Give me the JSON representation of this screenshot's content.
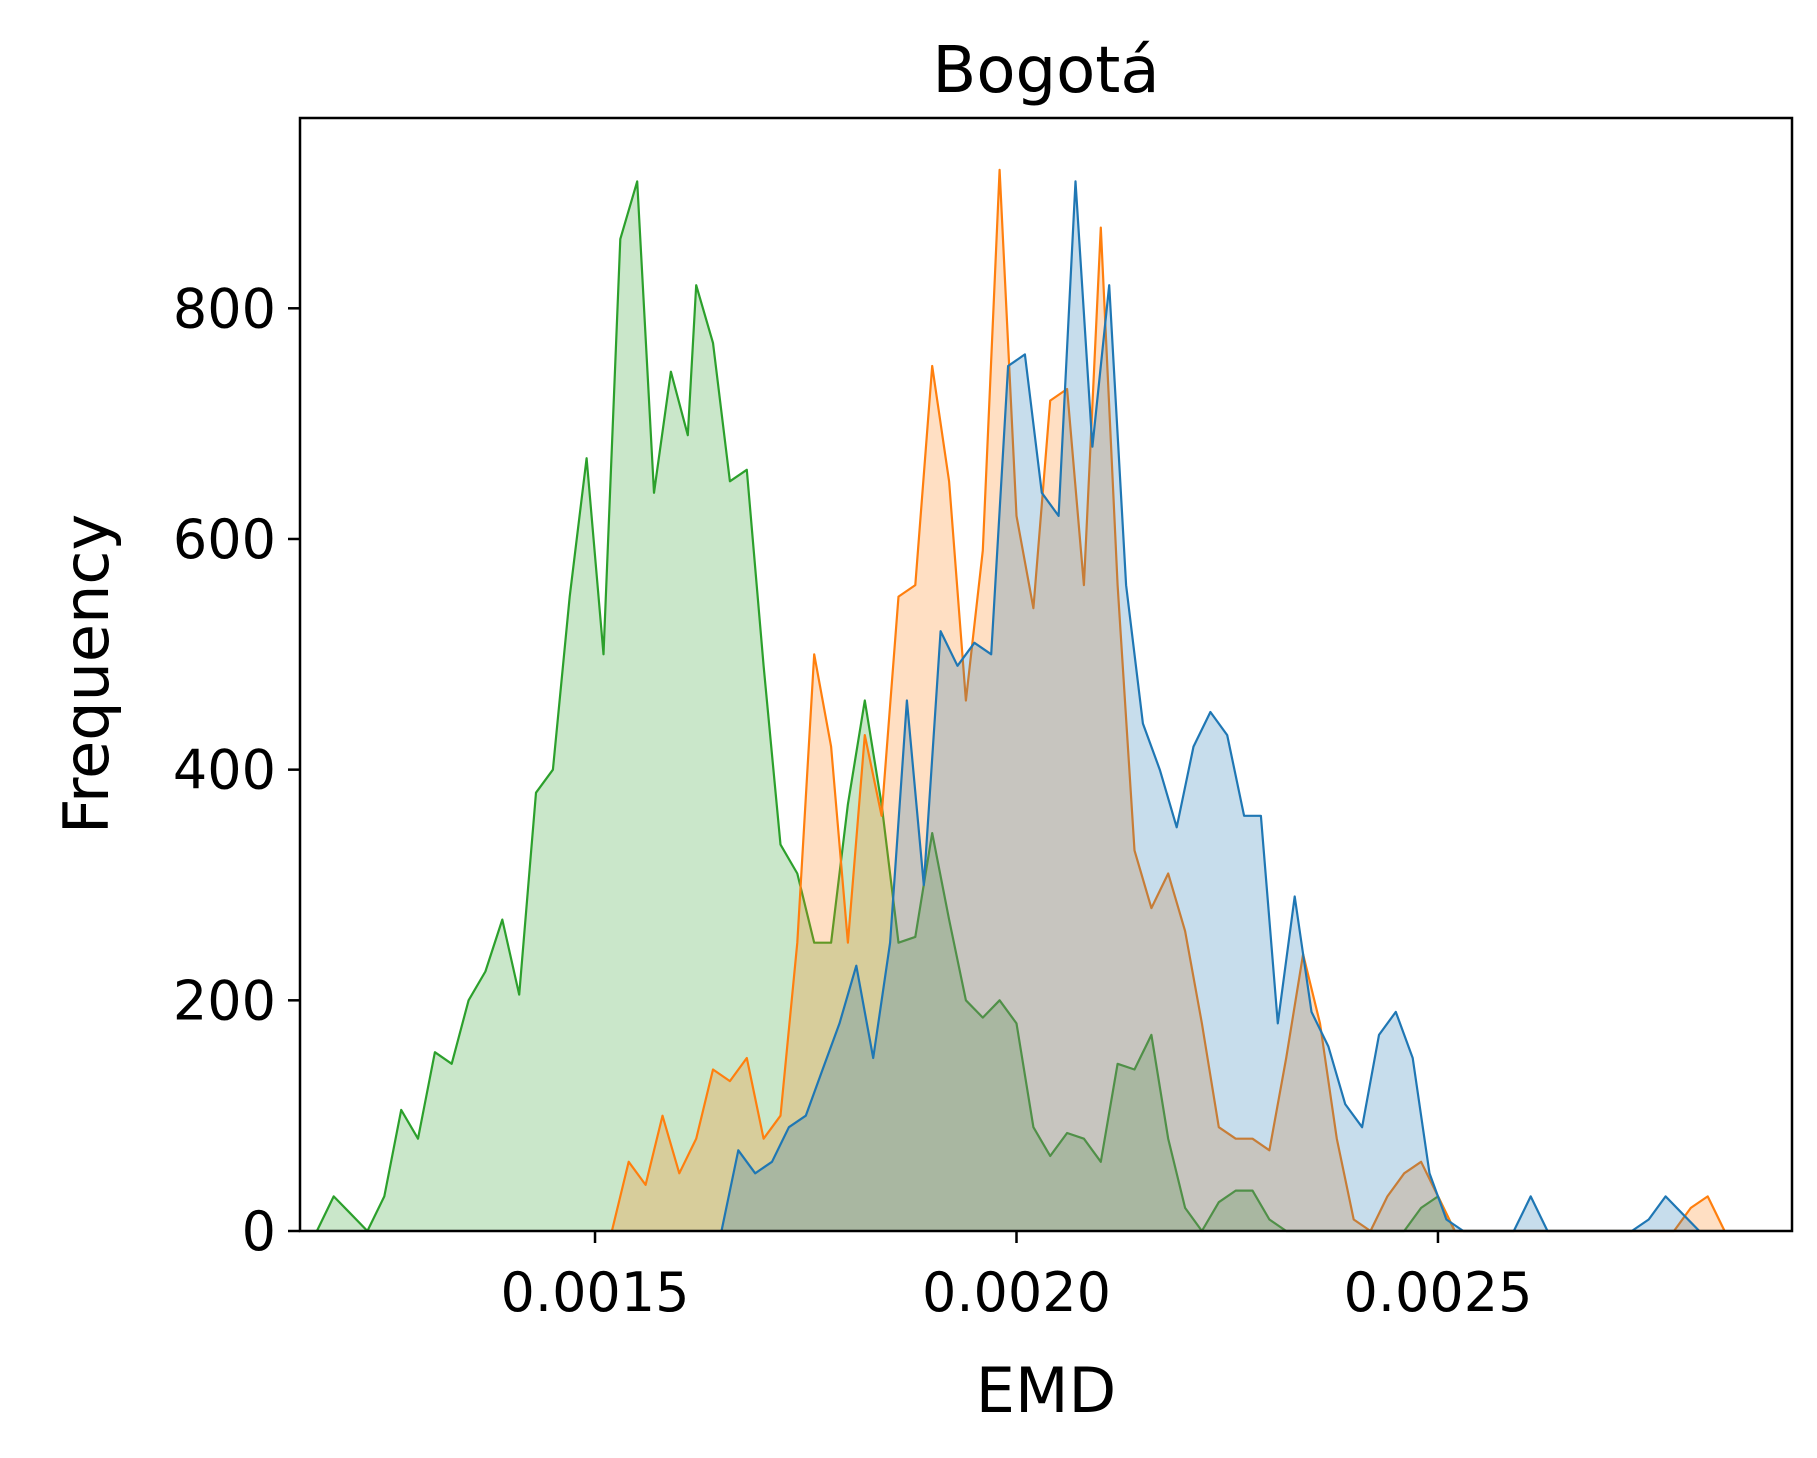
{
  "chart_data": {
    "type": "area",
    "title": "Bogotá",
    "xlabel": "EMD",
    "ylabel": "Frequency",
    "xlim": [
      0.00115,
      0.00292
    ],
    "ylim": [
      0,
      965
    ],
    "xticks": [
      0.0015,
      0.002,
      0.0025
    ],
    "xtick_labels": [
      "0.0015",
      "0.0020",
      "0.0025"
    ],
    "yticks": [
      0,
      200,
      400,
      600,
      800
    ],
    "ytick_labels": [
      "0",
      "200",
      "400",
      "600",
      "800"
    ],
    "grid": false,
    "legend": "none",
    "series": [
      {
        "color": "#2ca02c",
        "x": [
          0.00117,
          0.00119,
          0.00121,
          0.00123,
          0.00125,
          0.00127,
          0.00129,
          0.00131,
          0.00133,
          0.00135,
          0.00137,
          0.00139,
          0.00141,
          0.00143,
          0.00145,
          0.00147,
          0.00149,
          0.00151,
          0.00153,
          0.00155,
          0.00157,
          0.00159,
          0.00161,
          0.00162,
          0.00164,
          0.00166,
          0.00168,
          0.0017,
          0.00172,
          0.00174,
          0.00176,
          0.00178,
          0.0018,
          0.00182,
          0.00184,
          0.00186,
          0.00188,
          0.0019,
          0.00192,
          0.00194,
          0.00196,
          0.00198,
          0.002,
          0.00202,
          0.00204,
          0.00206,
          0.00208,
          0.0021,
          0.00212,
          0.00214,
          0.00216,
          0.00218,
          0.0022,
          0.00222,
          0.00224,
          0.00226,
          0.00228,
          0.0023,
          0.00232,
          0.00234,
          0.00246,
          0.00248,
          0.0025,
          0.00252
        ],
        "y": [
          0,
          30,
          15,
          0,
          30,
          105,
          80,
          155,
          145,
          200,
          225,
          270,
          205,
          380,
          400,
          550,
          670,
          500,
          860,
          910,
          640,
          745,
          690,
          820,
          770,
          650,
          660,
          490,
          335,
          310,
          250,
          250,
          370,
          460,
          370,
          250,
          255,
          345,
          270,
          200,
          185,
          200,
          180,
          90,
          65,
          85,
          80,
          60,
          145,
          140,
          170,
          80,
          20,
          0,
          25,
          35,
          35,
          10,
          0,
          0,
          0,
          20,
          30,
          0
        ]
      },
      {
        "color": "#ff7f0e",
        "x": [
          0.00152,
          0.00154,
          0.00156,
          0.00158,
          0.0016,
          0.00162,
          0.00164,
          0.00166,
          0.00168,
          0.0017,
          0.00172,
          0.00174,
          0.00176,
          0.00178,
          0.0018,
          0.00182,
          0.00184,
          0.00186,
          0.00188,
          0.0019,
          0.00192,
          0.00194,
          0.00196,
          0.00198,
          0.002,
          0.00202,
          0.00204,
          0.00206,
          0.00208,
          0.0021,
          0.00212,
          0.00214,
          0.00216,
          0.00218,
          0.0022,
          0.00222,
          0.00224,
          0.00226,
          0.00228,
          0.0023,
          0.00232,
          0.00234,
          0.00236,
          0.00238,
          0.0024,
          0.00242,
          0.00244,
          0.00246,
          0.00248,
          0.0025,
          0.00252,
          0.00254,
          0.00256,
          0.00278,
          0.0028,
          0.00282,
          0.00284
        ],
        "y": [
          0,
          60,
          40,
          100,
          50,
          80,
          140,
          130,
          150,
          80,
          100,
          250,
          500,
          420,
          250,
          430,
          360,
          550,
          560,
          750,
          650,
          460,
          590,
          920,
          620,
          540,
          720,
          730,
          560,
          870,
          560,
          330,
          280,
          310,
          260,
          180,
          90,
          80,
          80,
          70,
          150,
          240,
          180,
          80,
          10,
          0,
          30,
          50,
          60,
          30,
          0,
          0,
          0,
          0,
          20,
          30,
          0
        ]
      },
      {
        "color": "#1f77b4",
        "x": [
          0.00165,
          0.00167,
          0.00169,
          0.00171,
          0.00173,
          0.00175,
          0.00177,
          0.00179,
          0.00181,
          0.00183,
          0.00185,
          0.00187,
          0.00189,
          0.00191,
          0.00193,
          0.00195,
          0.00197,
          0.00199,
          0.00201,
          0.00203,
          0.00205,
          0.00207,
          0.00209,
          0.00211,
          0.00213,
          0.00215,
          0.00217,
          0.00219,
          0.00221,
          0.00223,
          0.00225,
          0.00227,
          0.00229,
          0.00231,
          0.00233,
          0.00235,
          0.00237,
          0.00239,
          0.00241,
          0.00243,
          0.00245,
          0.00247,
          0.00249,
          0.00251,
          0.00253,
          0.00255,
          0.00257,
          0.00259,
          0.00261,
          0.00263,
          0.00265,
          0.00267,
          0.00269,
          0.00271,
          0.00273,
          0.00275,
          0.00277,
          0.00279,
          0.00281
        ],
        "y": [
          0,
          70,
          50,
          60,
          90,
          100,
          140,
          180,
          230,
          150,
          250,
          460,
          300,
          520,
          490,
          510,
          500,
          750,
          760,
          640,
          620,
          910,
          680,
          820,
          560,
          440,
          400,
          350,
          420,
          450,
          430,
          360,
          360,
          180,
          290,
          190,
          160,
          110,
          90,
          170,
          190,
          150,
          50,
          10,
          0,
          0,
          0,
          0,
          30,
          0,
          0,
          0,
          0,
          0,
          0,
          10,
          30,
          15,
          0
        ]
      }
    ]
  }
}
